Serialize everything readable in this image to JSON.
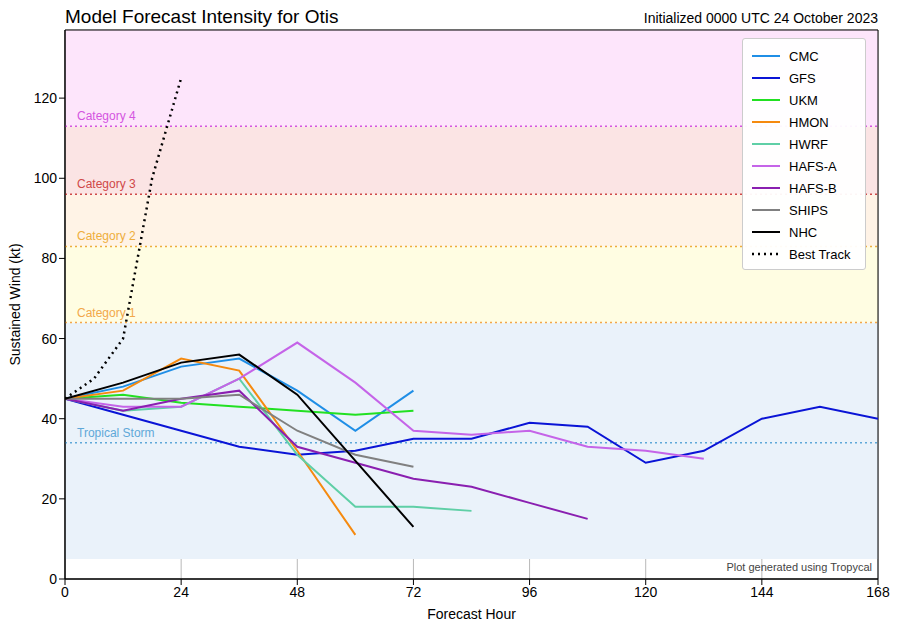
{
  "chart_data": {
    "type": "line",
    "title": "Model Forecast Intensity for Otis",
    "subtitle": "Initialized 0000 UTC 24 October 2023",
    "x_label": "Forecast Hour",
    "y_label": "Sustained Wind (kt)",
    "xlim": [
      0,
      168
    ],
    "xticks": [
      0,
      24,
      48,
      72,
      96,
      120,
      144,
      168
    ],
    "ylim": [
      0,
      137
    ],
    "yticks": [
      0,
      20,
      40,
      60,
      80,
      100,
      120
    ],
    "grid": true,
    "legend": "upper right",
    "annotations": [
      {
        "text": "Plot generated using Tropycal"
      }
    ],
    "bands": [
      {
        "from": 5,
        "to": 64,
        "color": "#eaf2fa"
      },
      {
        "from": 64,
        "to": 83,
        "color": "#fffde2"
      },
      {
        "from": 83,
        "to": 96,
        "color": "#fff3e6"
      },
      {
        "from": 96,
        "to": 113,
        "color": "#fbe4e4"
      },
      {
        "from": 113,
        "to": 137,
        "color": "#fde5fb"
      }
    ],
    "thresholds": [
      {
        "label": "Tropical Storm",
        "value": 34,
        "color": "#5fa8d8"
      },
      {
        "label": "Category 1",
        "value": 64,
        "color": "#f2a84a"
      },
      {
        "label": "Category 2",
        "value": 83,
        "color": "#eeae3c"
      },
      {
        "label": "Category 3",
        "value": 96,
        "color": "#d04848"
      },
      {
        "label": "Category 4",
        "value": 113,
        "color": "#d455e0"
      }
    ],
    "series": [
      {
        "name": "CMC",
        "color": "#1f8ee6",
        "x": [
          0,
          12,
          24,
          36,
          48,
          60,
          72
        ],
        "values": [
          45,
          48,
          53,
          55,
          47,
          37,
          47
        ]
      },
      {
        "name": "GFS",
        "color": "#0a14d6",
        "x": [
          0,
          12,
          24,
          36,
          48,
          60,
          72,
          84,
          96,
          108,
          120,
          132,
          144,
          156,
          168
        ],
        "values": [
          45,
          41,
          37,
          33,
          31,
          32,
          35,
          35,
          39,
          38,
          29,
          32,
          40,
          43,
          40
        ]
      },
      {
        "name": "UKM",
        "color": "#22e022",
        "x": [
          0,
          12,
          24,
          36,
          48,
          60,
          72
        ],
        "values": [
          45,
          46,
          44,
          43,
          42,
          41,
          42
        ]
      },
      {
        "name": "HMON",
        "color": "#f58a0f",
        "x": [
          0,
          12,
          24,
          36,
          48,
          60
        ],
        "values": [
          45,
          47,
          55,
          52,
          32,
          11
        ]
      },
      {
        "name": "HWRF",
        "color": "#5fcfa6",
        "x": [
          0,
          12,
          24,
          36,
          48,
          60,
          72,
          84
        ],
        "values": [
          45,
          42,
          43,
          50,
          31,
          18,
          18,
          17
        ]
      },
      {
        "name": "HAFS-A",
        "color": "#c564e8",
        "x": [
          0,
          12,
          24,
          36,
          48,
          60,
          72,
          84,
          96,
          108,
          120,
          132
        ],
        "values": [
          45,
          43,
          43,
          50,
          59,
          49,
          37,
          36,
          37,
          33,
          32,
          30
        ]
      },
      {
        "name": "HAFS-B",
        "color": "#8a1fb0",
        "x": [
          0,
          12,
          24,
          36,
          48,
          60,
          72,
          84,
          96,
          108
        ],
        "values": [
          45,
          42,
          45,
          47,
          33,
          29,
          25,
          23,
          19,
          15
        ]
      },
      {
        "name": "SHIPS",
        "color": "#808080",
        "x": [
          0,
          12,
          24,
          36,
          48,
          60,
          72
        ],
        "values": [
          45,
          45,
          45,
          46,
          37,
          31,
          28
        ]
      },
      {
        "name": "NHC",
        "color": "#000000",
        "x": [
          0,
          12,
          24,
          36,
          48,
          72
        ],
        "values": [
          45,
          49,
          54,
          56,
          46,
          13
        ]
      },
      {
        "name": "Best Track",
        "color": "#000000",
        "line_style": "dotted",
        "x": [
          0,
          6,
          12,
          18,
          24
        ],
        "values": [
          45,
          50,
          60,
          100,
          125
        ]
      }
    ]
  }
}
